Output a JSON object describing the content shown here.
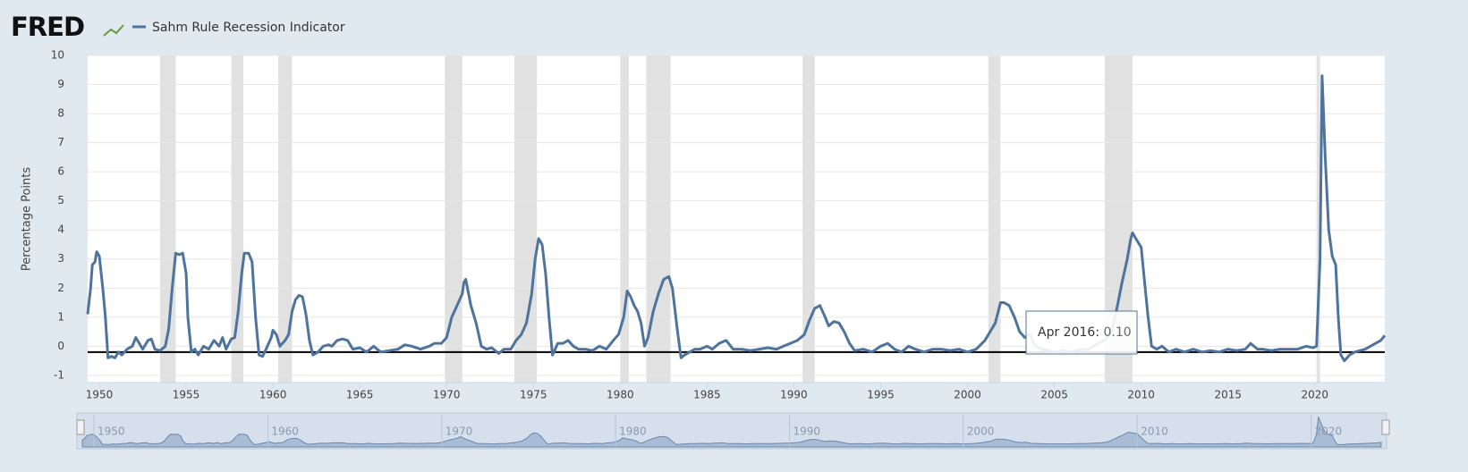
{
  "chart_data": {
    "type": "line",
    "logo": "FRED",
    "ylabel": "Percentage Points",
    "series": [
      {
        "name": "Sahm Rule Recession Indicator",
        "color": "#4e739e",
        "values": [
          1.1,
          2.0,
          2.8,
          2.9,
          3.25,
          3.1,
          2.0,
          1.0,
          -0.4,
          -0.35,
          -0.4,
          -0.2,
          -0.3,
          -0.1,
          0.0,
          0.3,
          0.1,
          -0.1,
          0.2,
          0.25,
          -0.1,
          -0.15,
          0.0,
          0.6,
          2.0,
          3.2,
          3.15,
          3.2,
          2.5,
          1.0,
          -0.2,
          -0.1,
          -0.3,
          0.0,
          -0.1,
          0.2,
          0.0,
          0.3,
          -0.1,
          0.25,
          0.3,
          1.2,
          2.5,
          3.2,
          3.2,
          2.9,
          1.0,
          -0.3,
          -0.35,
          -0.1,
          0.3,
          0.55,
          0.4,
          0.0,
          0.2,
          0.4,
          1.2,
          1.6,
          1.75,
          1.7,
          1.1,
          0.2,
          -0.3,
          -0.2,
          0.0,
          0.05,
          0.0,
          0.2,
          0.25,
          0.2,
          -0.1,
          -0.05,
          -0.2,
          0.0,
          -0.2,
          -0.15,
          -0.1,
          0.05,
          0.0,
          -0.1,
          0.0,
          0.1,
          0.1,
          0.3,
          1.0,
          1.4,
          1.8,
          2.2,
          2.3,
          1.4,
          0.8,
          0.0,
          -0.1,
          -0.05,
          -0.25,
          -0.1,
          -0.1,
          0.2,
          0.4,
          0.8,
          1.8,
          3.0,
          3.7,
          3.5,
          2.5,
          1.0,
          -0.3,
          0.1,
          0.1,
          0.2,
          0.0,
          -0.1,
          -0.1,
          -0.15,
          0.0,
          -0.1,
          0.2,
          0.4,
          1.0,
          1.9,
          1.7,
          1.4,
          1.2,
          0.8,
          0.0,
          0.3,
          1.2,
          1.8,
          2.3,
          2.4,
          2.0,
          0.5,
          -0.4,
          -0.3,
          -0.2,
          -0.1,
          -0.1,
          0.0,
          -0.1,
          0.1,
          0.2,
          -0.1,
          -0.1,
          -0.15,
          -0.1,
          -0.05,
          -0.1,
          0.0,
          0.1,
          0.2,
          0.4,
          0.9,
          1.3,
          1.4,
          1.0,
          0.7,
          0.85,
          0.8,
          0.5,
          0.1,
          -0.15,
          -0.1,
          -0.2,
          0.0,
          0.1,
          -0.1,
          -0.2,
          0.0,
          -0.1,
          -0.2,
          -0.1,
          -0.1,
          -0.15,
          -0.1,
          -0.2,
          -0.1,
          0.2,
          0.5,
          0.8,
          1.5,
          1.5,
          1.4,
          1.0,
          0.5,
          0.3,
          0.4,
          0.0,
          -0.1,
          -0.2,
          -0.15,
          -0.2,
          -0.1,
          -0.1,
          0.1,
          0.2,
          0.5,
          1.3,
          2.2,
          3.0,
          3.7,
          3.9,
          3.7,
          3.4,
          2.2,
          1.0,
          0.0,
          -0.1,
          0.0,
          -0.2,
          -0.1,
          -0.2,
          -0.1,
          -0.2,
          -0.15,
          -0.2,
          -0.1,
          -0.15,
          -0.1,
          0.1,
          -0.1,
          -0.1,
          -0.15,
          -0.1,
          -0.1,
          -0.1,
          0.0,
          -0.05,
          0.0,
          3.0,
          9.3,
          6.5,
          4.0,
          3.1,
          2.8,
          1.0,
          -0.3,
          -0.5,
          -0.3,
          -0.2,
          -0.15,
          -0.1,
          0.0,
          0.1,
          0.2,
          0.37
        ]
      }
    ],
    "x": [
      1949.33,
      1949.5,
      1949.6,
      1949.75,
      1949.85,
      1950.0,
      1950.2,
      1950.35,
      1950.5,
      1950.7,
      1950.9,
      1951.1,
      1951.3,
      1951.6,
      1951.9,
      1952.1,
      1952.3,
      1952.5,
      1952.8,
      1953.0,
      1953.2,
      1953.5,
      1953.8,
      1954.0,
      1954.2,
      1954.4,
      1954.6,
      1954.8,
      1955.0,
      1955.1,
      1955.3,
      1955.5,
      1955.7,
      1956.0,
      1956.3,
      1956.6,
      1956.9,
      1957.1,
      1957.3,
      1957.6,
      1957.8,
      1958.0,
      1958.2,
      1958.35,
      1958.6,
      1958.8,
      1959.0,
      1959.2,
      1959.4,
      1959.6,
      1959.9,
      1960.0,
      1960.2,
      1960.4,
      1960.7,
      1960.9,
      1961.1,
      1961.3,
      1961.5,
      1961.7,
      1961.9,
      1962.1,
      1962.3,
      1962.6,
      1962.9,
      1963.2,
      1963.4,
      1963.7,
      1964.0,
      1964.3,
      1964.6,
      1965.0,
      1965.4,
      1965.8,
      1966.2,
      1966.7,
      1967.2,
      1967.6,
      1968.0,
      1968.5,
      1969.0,
      1969.3,
      1969.7,
      1970.0,
      1970.3,
      1970.6,
      1970.9,
      1971.0,
      1971.1,
      1971.4,
      1971.7,
      1972.0,
      1972.3,
      1972.6,
      1973.0,
      1973.3,
      1973.7,
      1974.0,
      1974.3,
      1974.6,
      1974.9,
      1975.1,
      1975.3,
      1975.5,
      1975.7,
      1975.9,
      1976.1,
      1976.4,
      1976.7,
      1977.0,
      1977.3,
      1977.6,
      1978.0,
      1978.4,
      1978.8,
      1979.2,
      1979.6,
      1979.9,
      1980.2,
      1980.4,
      1980.6,
      1980.8,
      1981.0,
      1981.2,
      1981.4,
      1981.6,
      1981.9,
      1982.2,
      1982.5,
      1982.8,
      1983.0,
      1983.3,
      1983.5,
      1983.7,
      1984.0,
      1984.3,
      1984.6,
      1985.0,
      1985.3,
      1985.7,
      1986.1,
      1986.5,
      1987.0,
      1987.5,
      1988.0,
      1988.5,
      1989.0,
      1989.4,
      1989.8,
      1990.2,
      1990.6,
      1990.9,
      1991.2,
      1991.5,
      1991.8,
      1992.0,
      1992.3,
      1992.6,
      1992.9,
      1993.2,
      1993.5,
      1994.0,
      1994.5,
      1995.0,
      1995.4,
      1995.8,
      1996.2,
      1996.6,
      1997.0,
      1997.5,
      1998.0,
      1998.5,
      1999.0,
      1999.5,
      2000.0,
      2000.5,
      2001.0,
      2001.3,
      2001.6,
      2001.9,
      2002.1,
      2002.4,
      2002.7,
      2003.0,
      2003.3,
      2003.6,
      2003.9,
      2004.3,
      2005.0,
      2005.5,
      2006.0,
      2006.5,
      2007.0,
      2007.5,
      2007.9,
      2008.3,
      2008.6,
      2008.9,
      2009.2,
      2009.4,
      2009.5,
      2009.7,
      2010.0,
      2010.2,
      2010.4,
      2010.6,
      2010.9,
      2011.2,
      2011.6,
      2012.0,
      2012.5,
      2013.0,
      2013.5,
      2014.0,
      2014.5,
      2015.0,
      2015.5,
      2016.0,
      2016.3,
      2016.7,
      2017.0,
      2017.5,
      2018.0,
      2018.5,
      2019.0,
      2019.5,
      2019.9,
      2020.1,
      2020.3,
      2020.42,
      2020.6,
      2020.8,
      2021.0,
      2021.2,
      2021.35,
      2021.5,
      2021.7,
      2022.0,
      2022.3,
      2022.6,
      2022.9,
      2023.2,
      2023.5,
      2023.8,
      2024.03
    ],
    "recessions": [
      [
        1953.5,
        1954.4
      ],
      [
        1957.6,
        1958.3
      ],
      [
        1960.3,
        1961.1
      ],
      [
        1969.9,
        1970.9
      ],
      [
        1973.9,
        1975.2
      ],
      [
        1980.0,
        1980.5
      ],
      [
        1981.5,
        1982.9
      ],
      [
        1990.5,
        1991.2
      ],
      [
        2001.2,
        2001.9
      ],
      [
        2007.9,
        2009.5
      ],
      [
        2020.1,
        2020.3
      ]
    ],
    "recession_color": "#e1e1e1",
    "hline": -0.2,
    "xlim": [
      1949.33,
      2024.03
    ],
    "xticks": [
      1950,
      1955,
      1960,
      1965,
      1970,
      1975,
      1980,
      1985,
      1990,
      1995,
      2000,
      2005,
      2010,
      2015,
      2020
    ],
    "ylim": [
      -1.25,
      10
    ],
    "yticks": [
      -1,
      0,
      1,
      2,
      3,
      4,
      5,
      6,
      7,
      8,
      9,
      10
    ],
    "grid": true,
    "navigator_ticks": [
      1950,
      1960,
      1970,
      1980,
      1990,
      2000,
      2010,
      2020
    ],
    "tooltip": {
      "label": "Apr 2016",
      "value": 0.1,
      "value_label": "0.10"
    }
  }
}
